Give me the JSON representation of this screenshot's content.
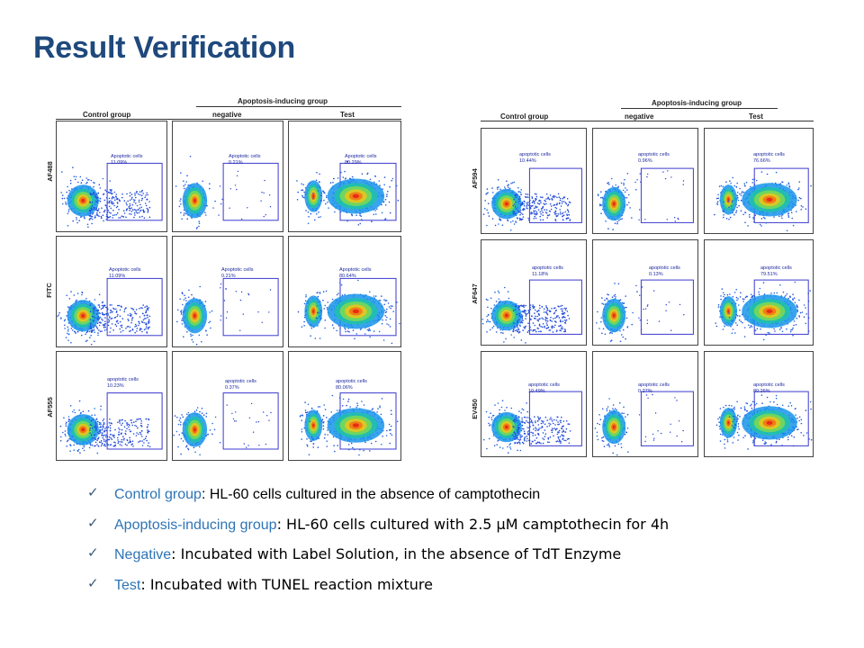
{
  "slide": {
    "title": "Result Verification"
  },
  "figures": [
    {
      "headers": {
        "control": "Control group",
        "apoptosis": "Apoptosis-inducing group",
        "negative": "negative",
        "test": "Test"
      },
      "rows": [
        {
          "label": "AF488",
          "panels": [
            {
              "kind": "control",
              "gate_label": "Apoptotic cells",
              "percent": "11.09%",
              "density": 0.6
            },
            {
              "kind": "negative",
              "gate_label": "Apoptotic cells",
              "percent": "0.21%",
              "density": 0.35
            },
            {
              "kind": "test",
              "gate_label": "Apoptotic cells",
              "percent": "80.29%",
              "density": 0.9
            }
          ]
        },
        {
          "label": "FITC",
          "panels": [
            {
              "kind": "control",
              "gate_label": "Apoptotic cells",
              "percent": "11.09%",
              "density": 0.6
            },
            {
              "kind": "negative",
              "gate_label": "Apoptotic cells",
              "percent": "0.21%",
              "density": 0.35
            },
            {
              "kind": "test",
              "gate_label": "Apoptotic cells",
              "percent": "80.64%",
              "density": 0.9
            }
          ]
        },
        {
          "label": "AF555",
          "panels": [
            {
              "kind": "control",
              "gate_label": "apoptotic cells",
              "percent": "10.23%",
              "density": 0.6
            },
            {
              "kind": "negative",
              "gate_label": "apoptotic cells",
              "percent": "0.37%",
              "density": 0.35
            },
            {
              "kind": "test",
              "gate_label": "apoptotic cells",
              "percent": "80.06%",
              "density": 0.9
            }
          ]
        }
      ]
    },
    {
      "headers": {
        "control": "Control group",
        "apoptosis": "Apoptosis-inducing group",
        "negative": "negative",
        "test": "Test"
      },
      "rows": [
        {
          "label": "AF594",
          "panels": [
            {
              "kind": "control",
              "gate_label": "apoptotic cells",
              "percent": "10.44%",
              "density": 0.55
            },
            {
              "kind": "negative",
              "gate_label": "apoptotic cells",
              "percent": "0.96%",
              "density": 0.4
            },
            {
              "kind": "test",
              "gate_label": "apoptotic cells",
              "percent": "76.66%",
              "density": 0.9
            }
          ]
        },
        {
          "label": "AF647",
          "panels": [
            {
              "kind": "control",
              "gate_label": "apoptotic cells",
              "percent": "11.18%",
              "density": 0.55
            },
            {
              "kind": "negative",
              "gate_label": "apoptotic cells",
              "percent": "0.13%",
              "density": 0.3
            },
            {
              "kind": "test",
              "gate_label": "apoptotic cells",
              "percent": "79.51%",
              "density": 0.9
            }
          ]
        },
        {
          "label": "EV450",
          "panels": [
            {
              "kind": "control",
              "gate_label": "apoptotic cells",
              "percent": "10.49%",
              "density": 0.6
            },
            {
              "kind": "negative",
              "gate_label": "apoptotic cells",
              "percent": "0.27%",
              "density": 0.4
            },
            {
              "kind": "test",
              "gate_label": "apoptotic cells",
              "percent": "80.26%",
              "density": 0.9
            }
          ]
        }
      ]
    }
  ],
  "bullets": [
    {
      "term": "Control group",
      "sep": ": ",
      "desc": "HL-60 cells cultured in the absence of camptothecin",
      "desc_font": "liberation"
    },
    {
      "term": "Apoptosis-inducing group",
      "sep": ": ",
      "desc": "HL-60 cells cultured with 2.5 μM camptothecin for 4h",
      "desc_font": "dejavu"
    },
    {
      "term": "Negative",
      "sep": ": ",
      "desc": "Incubated with Label Solution, in the absence of TdT Enzyme",
      "desc_font": "dejavu"
    },
    {
      "term": "Test",
      "sep": ": ",
      "desc": "Incubated with TUNEL reaction mixture",
      "desc_font": "dejavu"
    }
  ],
  "colors": {
    "title": "#1F497D",
    "term": "#2E74B5",
    "check": "#3c5a78",
    "gate": "#3a3ad0"
  }
}
